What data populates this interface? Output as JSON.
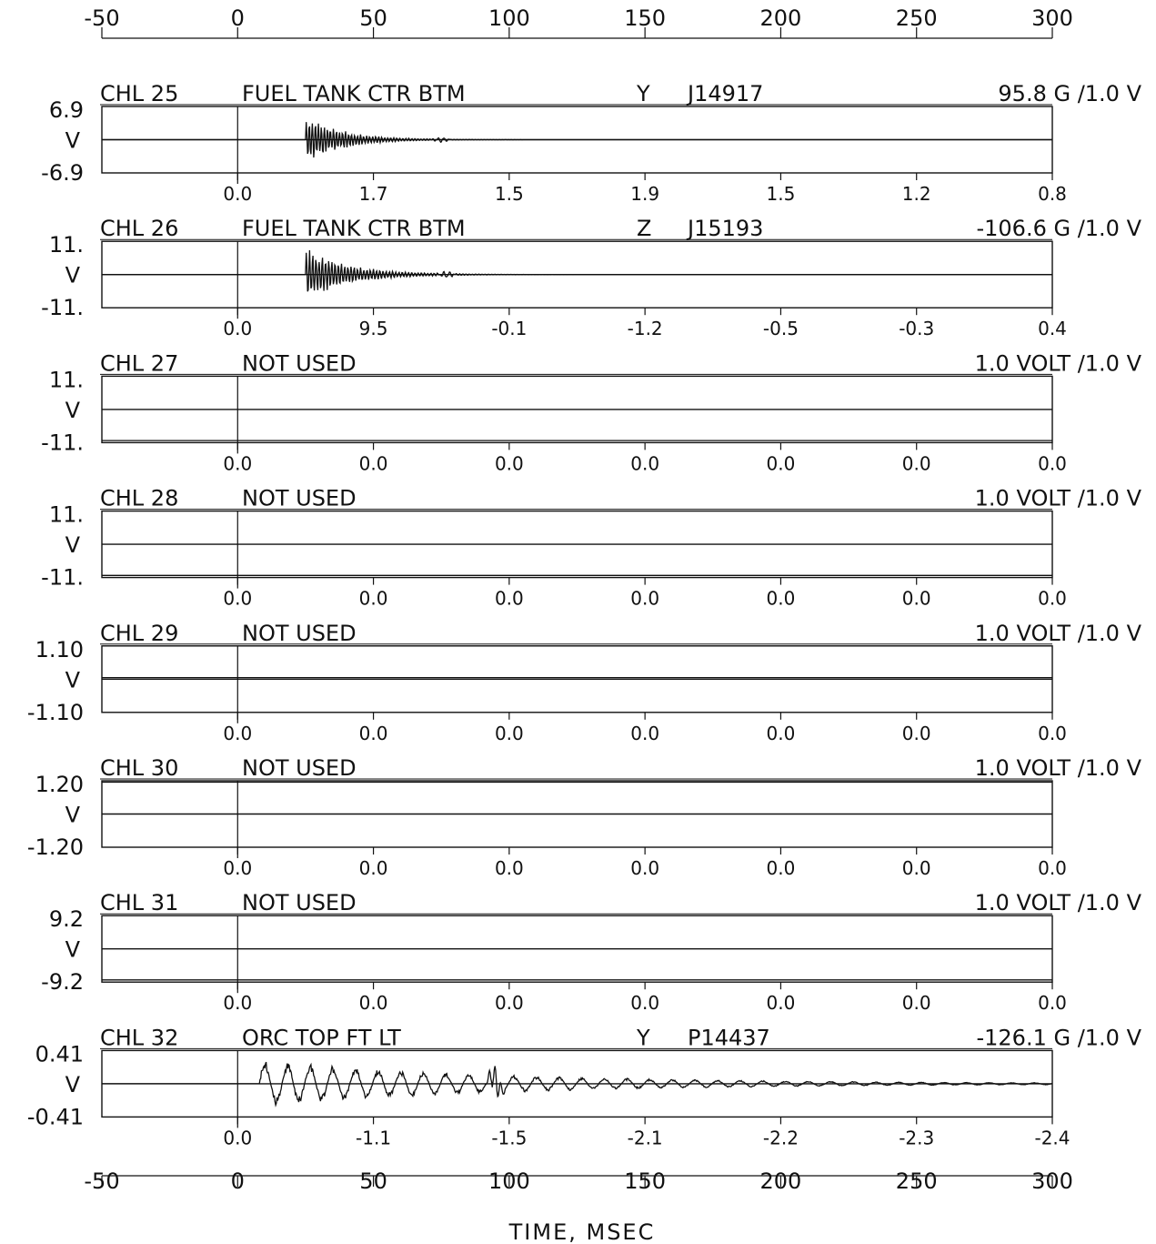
{
  "time_axis": {
    "ticks": [
      "-50",
      "0",
      "50",
      "100",
      "150",
      "200",
      "250",
      "300"
    ],
    "xlim": [
      -50,
      300
    ],
    "label": "TIME, MSEC"
  },
  "chart_data": [
    {
      "type": "line",
      "channel": "CHL 25",
      "description": "FUEL TANK CTR BTM",
      "axis": "Y",
      "serial": "J14917",
      "scale": "95.8 G /1.0 V",
      "ymax_label": "6.9",
      "unit_label": "V",
      "ymin_label": "-6.9",
      "ylim": [
        -6.9,
        6.9
      ],
      "interval_values": [
        "0.0",
        "1.7",
        "1.5",
        "1.9",
        "1.5",
        "1.2",
        "0.8"
      ],
      "signal": {
        "onset": 25,
        "peak": 5.5,
        "decay": 13,
        "freq": 0.9,
        "bumps": [
          [
            75,
            0.5
          ]
        ],
        "baseline": 0
      }
    },
    {
      "type": "line",
      "channel": "CHL 26",
      "description": "FUEL TANK CTR BTM",
      "axis": "Z",
      "serial": "J15193",
      "scale": "-106.6 G /1.0 V",
      "ymax_label": "11.",
      "unit_label": "V",
      "ymin_label": "-11.",
      "ylim": [
        -11,
        11
      ],
      "interval_values": [
        "0.0",
        "9.5",
        "-0.1",
        "-1.2",
        "-0.5",
        "-0.3",
        "0.4"
      ],
      "signal": {
        "onset": 25,
        "peak": 9,
        "decay": 16,
        "freq": 0.85,
        "bumps": [
          [
            77,
            1.0
          ]
        ],
        "baseline": 0
      }
    },
    {
      "type": "line",
      "channel": "CHL 27",
      "description": "NOT USED",
      "axis": "",
      "serial": "",
      "scale": "1.0 VOLT /1.0 V",
      "ymax_label": "11.",
      "unit_label": "V",
      "ymin_label": "-11.",
      "ylim": [
        -11,
        11
      ],
      "interval_values": [
        "0.0",
        "0.0",
        "0.0",
        "0.0",
        "0.0",
        "0.0",
        "0.0"
      ],
      "signal": {
        "onset": 0,
        "peak": 0,
        "decay": 1,
        "freq": 1,
        "bumps": [],
        "baseline": -10.3
      }
    },
    {
      "type": "line",
      "channel": "CHL 28",
      "description": "NOT USED",
      "axis": "",
      "serial": "",
      "scale": "1.0 VOLT /1.0 V",
      "ymax_label": "11.",
      "unit_label": "V",
      "ymin_label": "-11.",
      "ylim": [
        -11,
        11
      ],
      "interval_values": [
        "0.0",
        "0.0",
        "0.0",
        "0.0",
        "0.0",
        "0.0",
        "0.0"
      ],
      "signal": {
        "onset": 0,
        "peak": 0,
        "decay": 1,
        "freq": 1,
        "bumps": [],
        "baseline": -10.3
      }
    },
    {
      "type": "line",
      "channel": "CHL 29",
      "description": "NOT USED",
      "axis": "",
      "serial": "",
      "scale": "1.0 VOLT /1.0 V",
      "ymax_label": "1.10",
      "unit_label": "V",
      "ymin_label": "-1.10",
      "ylim": [
        -1.1,
        1.1
      ],
      "interval_values": [
        "0.0",
        "0.0",
        "0.0",
        "0.0",
        "0.0",
        "0.0",
        "0.0"
      ],
      "signal": {
        "onset": 0,
        "peak": 0,
        "decay": 1,
        "freq": 1,
        "bumps": [],
        "baseline": 0.05
      }
    },
    {
      "type": "line",
      "channel": "CHL 30",
      "description": "NOT USED",
      "axis": "",
      "serial": "",
      "scale": "1.0 VOLT /1.0 V",
      "ymax_label": "1.20",
      "unit_label": "V",
      "ymin_label": "-1.20",
      "ylim": [
        -1.2,
        1.2
      ],
      "interval_values": [
        "0.0",
        "0.0",
        "0.0",
        "0.0",
        "0.0",
        "0.0",
        "0.0"
      ],
      "signal": {
        "onset": 0,
        "peak": 0,
        "decay": 1,
        "freq": 1,
        "bumps": [],
        "baseline": 1.15
      }
    },
    {
      "type": "line",
      "channel": "CHL 31",
      "description": "NOT USED",
      "axis": "",
      "serial": "",
      "scale": "1.0 VOLT /1.0 V",
      "ymax_label": "9.2",
      "unit_label": "V",
      "ymin_label": "-9.2",
      "ylim": [
        -9.2,
        9.2
      ],
      "interval_values": [
        "0.0",
        "0.0",
        "0.0",
        "0.0",
        "0.0",
        "0.0",
        "0.0"
      ],
      "signal": {
        "onset": 0,
        "peak": 0,
        "decay": 1,
        "freq": 1,
        "bumps": [],
        "baseline": -8.6
      }
    },
    {
      "type": "line",
      "channel": "CHL 32",
      "description": "ORC TOP FT LT",
      "axis": "Y",
      "serial": "P14437",
      "scale": "-126.1 G /1.0 V",
      "ymax_label": "0.41",
      "unit_label": "V",
      "ymin_label": "-0.41",
      "ylim": [
        -0.41,
        0.41
      ],
      "interval_values": [
        "0.0",
        "-1.1",
        "-1.5",
        "-2.1",
        "-2.2",
        "-2.3",
        "-2.4"
      ],
      "signal": {
        "onset": 8,
        "peak": 0.3,
        "decay": 90,
        "freq": 0.12,
        "bumps": [
          [
            95,
            0.18
          ]
        ],
        "baseline": 0
      }
    }
  ]
}
